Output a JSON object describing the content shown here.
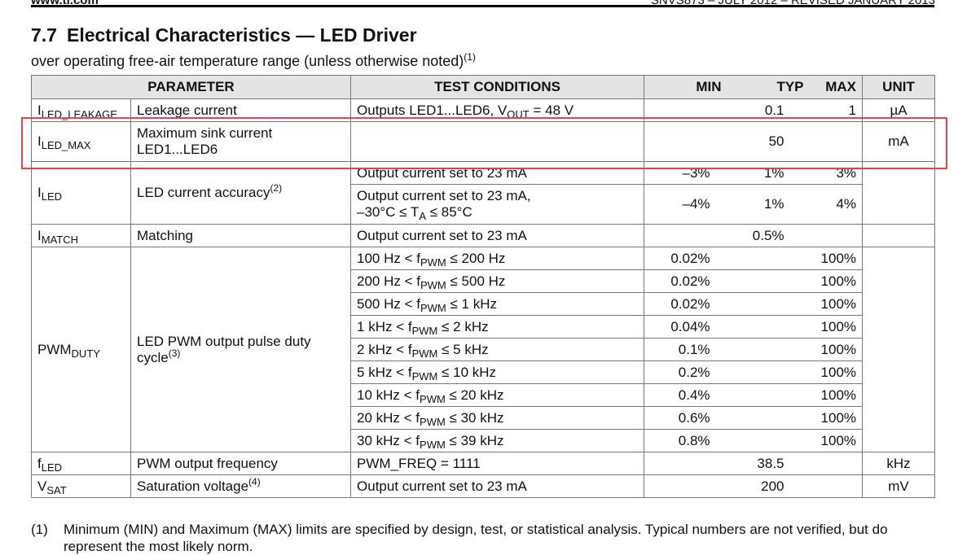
{
  "header": {
    "left": "www.ti.com",
    "right": "SNVS873 – JULY 2012 – REVISED JANUARY 2013"
  },
  "section": {
    "number": "7.7",
    "title": "Electrical Characteristics — LED Driver",
    "subtitle": "over operating free-air temperature range (unless otherwise noted)",
    "subtitle_note": "(1)"
  },
  "table": {
    "columns": {
      "parameter": "PARAMETER",
      "test": "TEST CONDITIONS",
      "min": "MIN",
      "typ": "TYP",
      "max": "MAX",
      "unit": "UNIT"
    },
    "groups": [
      {
        "symbol": [
          "I",
          {
            "sub": "LED_LEAKAGE"
          }
        ],
        "parameter": [
          "Leakage current"
        ],
        "unit": "µA",
        "conditions": [
          {
            "test": [
              "Outputs LED1...LED6, V",
              {
                "sub": "OUT"
              },
              " = 48 V"
            ],
            "typ": "0.1",
            "max": "1"
          }
        ]
      },
      {
        "symbol": [
          "I",
          {
            "sub": "LED_MAX"
          }
        ],
        "parameter": [
          "Maximum sink current\nLED1...LED6"
        ],
        "unit": "mA",
        "conditions": [
          {
            "typ": "50"
          }
        ]
      },
      {
        "symbol": [
          "I",
          {
            "sub": "LED"
          }
        ],
        "parameter": [
          "LED current accuracy",
          {
            "sup": "(2)"
          }
        ],
        "conditions": [
          {
            "test": [
              "Output current set to 23 mA"
            ],
            "min": "–3%",
            "typ": "1%",
            "max": "3%"
          },
          {
            "test": [
              "Output current set to 23 mA,\n–30°C ≤ T",
              {
                "sub": "A"
              },
              " ≤ 85°C"
            ],
            "min": "–4%",
            "typ": "1%",
            "max": "4%"
          }
        ]
      },
      {
        "symbol": [
          "I",
          {
            "sub": "MATCH"
          }
        ],
        "parameter": [
          "Matching"
        ],
        "conditions": [
          {
            "test": [
              "Output current set to 23 mA"
            ],
            "typ": "0.5%"
          }
        ]
      },
      {
        "symbol": [
          "PWM",
          {
            "sub": "DUTY"
          }
        ],
        "parameter": [
          "LED PWM output pulse duty\ncycle",
          {
            "sup": "(3)"
          }
        ],
        "conditions": [
          {
            "test": [
              "100 Hz < f",
              {
                "sub": "PWM"
              },
              " ≤ 200 Hz"
            ],
            "min": "0.02%",
            "max": "100%"
          },
          {
            "test": [
              "200 Hz < f",
              {
                "sub": "PWM"
              },
              " ≤ 500 Hz"
            ],
            "min": "0.02%",
            "max": "100%"
          },
          {
            "test": [
              "500 Hz < f",
              {
                "sub": "PWM"
              },
              " ≤ 1 kHz"
            ],
            "min": "0.02%",
            "max": "100%"
          },
          {
            "test": [
              "1 kHz < f",
              {
                "sub": "PWM"
              },
              " ≤ 2 kHz"
            ],
            "min": "0.04%",
            "max": "100%"
          },
          {
            "test": [
              "2 kHz < f",
              {
                "sub": "PWM"
              },
              " ≤ 5 kHz"
            ],
            "min": "0.1%",
            "max": "100%"
          },
          {
            "test": [
              "5 kHz < f",
              {
                "sub": "PWM"
              },
              " ≤ 10 kHz"
            ],
            "min": "0.2%",
            "max": "100%"
          },
          {
            "test": [
              "10 kHz < f",
              {
                "sub": "PWM"
              },
              " ≤ 20 kHz"
            ],
            "min": "0.4%",
            "max": "100%"
          },
          {
            "test": [
              "20 kHz < f",
              {
                "sub": "PWM"
              },
              " ≤ 30 kHz"
            ],
            "min": "0.6%",
            "max": "100%"
          },
          {
            "test": [
              "30 kHz < f",
              {
                "sub": "PWM"
              },
              " ≤ 39 kHz"
            ],
            "min": "0.8%",
            "max": "100%"
          }
        ]
      },
      {
        "symbol": [
          "f",
          {
            "sub": "LED"
          }
        ],
        "parameter": [
          "PWM output frequency"
        ],
        "unit": "kHz",
        "conditions": [
          {
            "test": [
              "PWM_FREQ = 1111"
            ],
            "typ": "38.5"
          }
        ]
      },
      {
        "symbol": [
          "V",
          {
            "sub": "SAT"
          }
        ],
        "parameter": [
          "Saturation voltage",
          {
            "sup": "(4)"
          }
        ],
        "unit": "mV",
        "conditions": [
          {
            "test": [
              "Output current set to 23 mA"
            ],
            "typ": "200"
          }
        ]
      }
    ]
  },
  "footnotes": [
    {
      "mark": "(1)",
      "text": "Minimum (MIN) and Maximum (MAX) limits are specified by design, test, or statistical analysis. Typical numbers are not verified, but do represent the most likely norm."
    }
  ]
}
